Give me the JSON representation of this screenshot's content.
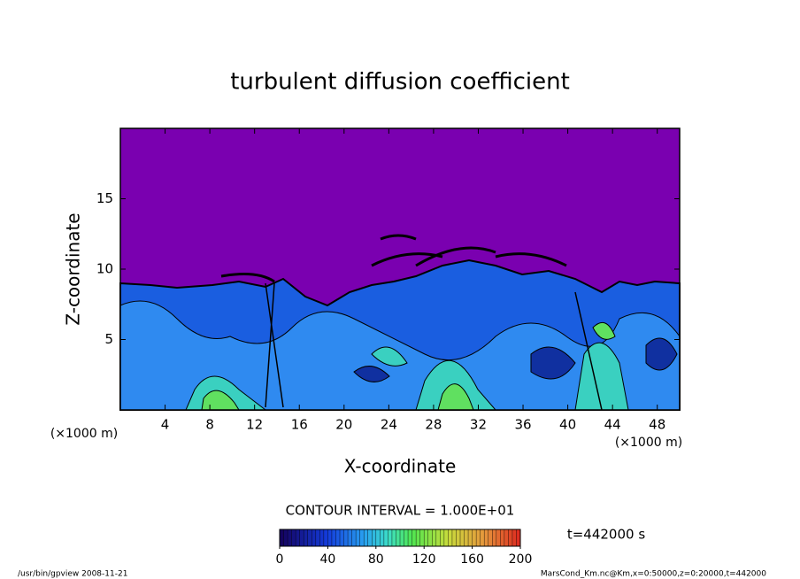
{
  "chart_data": {
    "type": "contour",
    "title": "turbulent diffusion coefficient",
    "xlabel": "X-coordinate",
    "ylabel": "Z-coordinate",
    "xunit": "(×1000 m)",
    "yunit": "(×1000 m)",
    "xlim": [
      0,
      50
    ],
    "ylim": [
      0,
      20
    ],
    "xticks": [
      4,
      8,
      12,
      16,
      20,
      24,
      28,
      32,
      36,
      40,
      44,
      48
    ],
    "yticks": [
      5,
      10,
      15
    ],
    "contour_interval": "CONTOUR INTERVAL = 1.000E+01",
    "time_label": "t=442000 s",
    "clim": [
      0,
      200
    ],
    "colorbar_ticks": [
      0,
      40,
      80,
      120,
      160,
      200
    ],
    "footer_left": "/usr/bin/gpview  2008-11-21",
    "footer_right": "MarsCond_Km.nc@Km,x=0:50000,z=0:20000,t=442000"
  }
}
